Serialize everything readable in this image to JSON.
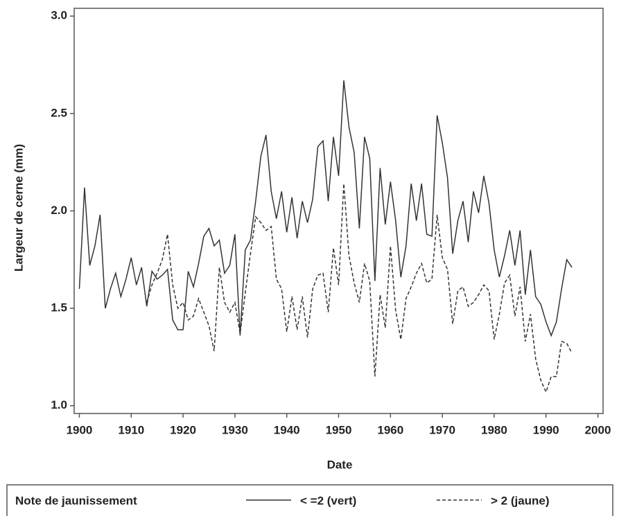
{
  "chart_data": {
    "type": "line",
    "x_label": "Date",
    "y_label": "Largeur de cerne (mm)",
    "legend_title": "Note de jaunissement",
    "legend_position": "bottom",
    "x": [
      1900,
      1901,
      1902,
      1903,
      1904,
      1905,
      1906,
      1907,
      1908,
      1909,
      1910,
      1911,
      1912,
      1913,
      1914,
      1915,
      1916,
      1917,
      1918,
      1919,
      1920,
      1921,
      1922,
      1923,
      1924,
      1925,
      1926,
      1927,
      1928,
      1929,
      1930,
      1931,
      1932,
      1933,
      1934,
      1935,
      1936,
      1937,
      1938,
      1939,
      1940,
      1941,
      1942,
      1943,
      1944,
      1945,
      1946,
      1947,
      1948,
      1949,
      1950,
      1951,
      1952,
      1953,
      1954,
      1955,
      1956,
      1957,
      1958,
      1959,
      1960,
      1961,
      1962,
      1963,
      1964,
      1965,
      1966,
      1967,
      1968,
      1969,
      1970,
      1971,
      1972,
      1973,
      1974,
      1975,
      1976,
      1977,
      1978,
      1979,
      1980,
      1981,
      1982,
      1983,
      1984,
      1985,
      1986,
      1987,
      1988,
      1989,
      1990,
      1991,
      1992,
      1993,
      1994,
      1995
    ],
    "series": [
      {
        "name": "< =2 (vert)",
        "color": "#333333",
        "dash": "solid",
        "values": [
          1.6,
          2.12,
          1.72,
          1.82,
          1.98,
          1.5,
          1.6,
          1.68,
          1.56,
          1.65,
          1.76,
          1.62,
          1.71,
          1.51,
          1.69,
          1.65,
          1.67,
          1.7,
          1.44,
          1.39,
          1.39,
          1.69,
          1.61,
          1.73,
          1.87,
          1.91,
          1.82,
          1.85,
          1.68,
          1.72,
          1.88,
          1.36,
          1.8,
          1.85,
          2.05,
          2.28,
          2.39,
          2.1,
          1.96,
          2.1,
          1.89,
          2.07,
          1.86,
          2.05,
          1.94,
          2.06,
          2.33,
          2.36,
          2.05,
          2.38,
          2.18,
          2.67,
          2.43,
          2.3,
          1.91,
          2.38,
          2.27,
          1.64,
          2.22,
          1.93,
          2.15,
          1.95,
          1.66,
          1.82,
          2.14,
          1.95,
          2.14,
          1.88,
          1.87,
          2.49,
          2.35,
          2.17,
          1.78,
          1.95,
          2.05,
          1.84,
          2.1,
          1.99,
          2.18,
          2.04,
          1.8,
          1.66,
          1.77,
          1.9,
          1.72,
          1.9,
          1.57,
          1.8,
          1.56,
          1.52,
          1.43,
          1.36,
          1.43,
          1.6,
          1.75,
          1.71
        ]
      },
      {
        "name": "> 2 (jaune)",
        "color": "#333333",
        "dash": "dashed",
        "values": [
          null,
          null,
          null,
          null,
          null,
          null,
          null,
          null,
          null,
          null,
          null,
          null,
          null,
          1.53,
          1.62,
          1.68,
          1.75,
          1.88,
          1.62,
          1.5,
          1.53,
          1.44,
          1.46,
          1.55,
          1.48,
          1.41,
          1.28,
          1.71,
          1.53,
          1.48,
          1.53,
          1.37,
          1.58,
          1.78,
          1.97,
          1.94,
          1.9,
          1.92,
          1.65,
          1.6,
          1.38,
          1.56,
          1.39,
          1.56,
          1.35,
          1.6,
          1.67,
          1.68,
          1.48,
          1.81,
          1.62,
          2.14,
          1.77,
          1.63,
          1.53,
          1.73,
          1.64,
          1.15,
          1.57,
          1.4,
          1.82,
          1.49,
          1.34,
          1.55,
          1.61,
          1.68,
          1.73,
          1.63,
          1.65,
          1.98,
          1.76,
          1.7,
          1.42,
          1.59,
          1.61,
          1.51,
          1.53,
          1.57,
          1.62,
          1.59,
          1.34,
          1.47,
          1.63,
          1.67,
          1.46,
          1.61,
          1.33,
          1.47,
          1.24,
          1.13,
          1.07,
          1.15,
          1.15,
          1.33,
          1.32,
          1.27
        ]
      }
    ],
    "xlim": [
      1899,
      2001
    ],
    "xticks": [
      1900,
      1910,
      1920,
      1930,
      1940,
      1950,
      1960,
      1970,
      1980,
      1990,
      2000
    ],
    "ylim": [
      0.96,
      3.04
    ],
    "yticks": [
      {
        "value": 1.0,
        "label": "1.0"
      },
      {
        "value": 1.5,
        "label": "1.5"
      },
      {
        "value": 2.0,
        "label": "2.0"
      },
      {
        "value": 2.5,
        "label": "2.5"
      },
      {
        "value": 3.0,
        "label": "3.0"
      }
    ]
  }
}
